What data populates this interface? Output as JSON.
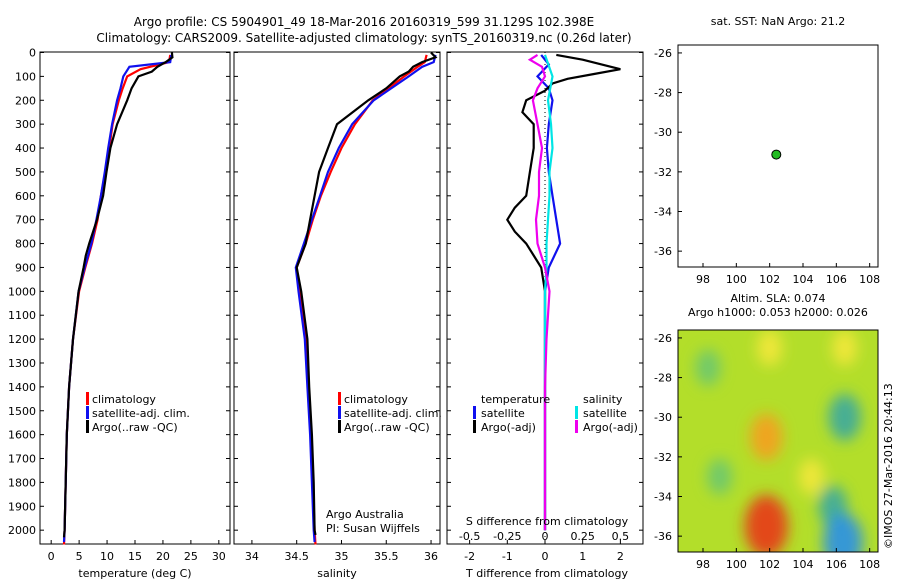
{
  "header": {
    "title1": "Argo profile: CS 5904901_49 18-Mar-2016 20160319_599 31.129S 102.398E",
    "title2": "Climatology: CARS2009. Satellite-adjusted climatology: synTS_20160319.nc (0.26d later)"
  },
  "colors": {
    "climatology": "#ff0000",
    "satellite": "#1010ee",
    "argo": "#000000",
    "sal_satellite": "#00e5e5",
    "sal_argo": "#ee00ee",
    "dot": "#22bb22"
  },
  "depth_ticks": [
    "0",
    "100",
    "200",
    "300",
    "400",
    "500",
    "600",
    "700",
    "800",
    "900",
    "1000",
    "1100",
    "1200",
    "1300",
    "1400",
    "1500",
    "1600",
    "1700",
    "1800",
    "1900",
    "2000"
  ],
  "legend": {
    "climatology": "climatology",
    "satellite_adj": "satellite-adj. clim.",
    "argo_raw": "Argo(..raw -QC)"
  },
  "diff_legend": {
    "temperature": "temperature",
    "salinity": "salinity",
    "satellite": "satellite",
    "argo_adj": "Argo(-adj)"
  },
  "credit": {
    "line1": "Argo Australia",
    "line2": "PI: Susan Wijffels"
  },
  "watermark": "©IMOS 27-Mar-2016 20:44:13",
  "chart_data": [
    {
      "type": "line",
      "xlabel": "temperature (deg C)",
      "xlim": [
        -2,
        32
      ],
      "ylim": [
        0,
        2060
      ],
      "xticks": [
        "0",
        "5",
        "10",
        "15",
        "20",
        "25",
        "30"
      ],
      "series": [
        {
          "name": "climatology",
          "depth": [
            10,
            40,
            70,
            100,
            150,
            200,
            300,
            400,
            500,
            600,
            700,
            800,
            900,
            1000,
            1200,
            1400,
            1600,
            1800,
            2000,
            2060
          ],
          "values": [
            21.3,
            21.1,
            16,
            13.6,
            12.8,
            12.1,
            11,
            10.4,
            9.7,
            8.9,
            8.3,
            7.3,
            6.1,
            5.0,
            3.9,
            3.2,
            2.8,
            2.6,
            2.4,
            2.3
          ]
        },
        {
          "name": "satellite-adj. clim.",
          "depth": [
            10,
            40,
            60,
            100,
            150,
            200,
            300,
            400,
            500,
            600,
            700,
            800,
            900,
            1000,
            1200,
            1400,
            1600,
            1800,
            2000,
            2050
          ],
          "values": [
            21.5,
            21.3,
            14,
            12.9,
            12.4,
            11.8,
            10.9,
            10.2,
            9.6,
            8.9,
            8.1,
            7.2,
            6.0,
            4.9,
            3.9,
            3.2,
            2.8,
            2.6,
            2.4,
            2.3
          ]
        },
        {
          "name": "Argo(..raw -QC)",
          "depth": [
            0,
            20,
            40,
            60,
            80,
            100,
            150,
            200,
            300,
            400,
            500,
            600,
            700,
            800,
            850,
            900,
            1000,
            1200,
            1400,
            1600,
            1800,
            2000,
            2030
          ],
          "values": [
            21.6,
            21.7,
            20.5,
            19,
            18,
            15.6,
            14.4,
            13.6,
            11.8,
            10.6,
            9.9,
            9.3,
            8.2,
            6.8,
            6.2,
            5.8,
            4.9,
            3.9,
            3.2,
            2.8,
            2.6,
            2.4,
            2.3
          ]
        }
      ]
    },
    {
      "type": "line",
      "xlabel": "salinity",
      "xlim": [
        33.8,
        36.1
      ],
      "ylim": [
        0,
        2060
      ],
      "xticks": [
        "34",
        "34.5",
        "35",
        "35.5",
        "36"
      ],
      "series": [
        {
          "name": "climatology",
          "depth": [
            10,
            40,
            60,
            100,
            200,
            300,
            400,
            500,
            600,
            700,
            800,
            900,
            1000,
            1200,
            1400,
            1600,
            1800,
            2000,
            2060
          ],
          "values": [
            35.95,
            35.93,
            35.85,
            35.7,
            35.35,
            35.15,
            35.0,
            34.88,
            34.77,
            34.68,
            34.6,
            34.5,
            34.53,
            34.6,
            34.63,
            34.66,
            34.68,
            34.7,
            34.71
          ]
        },
        {
          "name": "satellite-adj. clim.",
          "depth": [
            10,
            40,
            60,
            100,
            200,
            300,
            400,
            500,
            600,
            700,
            800,
            900,
            1000,
            1200,
            1400,
            1600,
            1800,
            2000,
            2050
          ],
          "values": [
            36.05,
            36.03,
            35.9,
            35.75,
            35.36,
            35.12,
            34.97,
            34.85,
            34.76,
            34.67,
            34.58,
            34.49,
            34.52,
            34.59,
            34.62,
            34.65,
            34.67,
            34.69,
            34.7
          ]
        },
        {
          "name": "Argo(..raw -QC)",
          "depth": [
            0,
            20,
            40,
            60,
            80,
            100,
            150,
            200,
            300,
            400,
            500,
            600,
            700,
            800,
            850,
            900,
            1000,
            1200,
            1400,
            1600,
            1800,
            2000,
            2020
          ],
          "values": [
            36.0,
            36.05,
            35.9,
            35.8,
            35.75,
            35.65,
            35.5,
            35.3,
            34.95,
            34.85,
            34.75,
            34.7,
            34.65,
            34.6,
            34.55,
            34.5,
            34.55,
            34.62,
            34.64,
            34.67,
            34.69,
            34.7,
            34.71
          ]
        }
      ]
    },
    {
      "type": "line",
      "xlabel": "T difference from climatology",
      "x2label": "S difference from climatology",
      "xlim": [
        -2.6,
        2.6
      ],
      "ylim": [
        0,
        2060
      ],
      "xticks": [
        "-2",
        "-1",
        "0",
        "1",
        "2"
      ],
      "x2ticks": [
        "-0.5",
        "-0.25",
        "0",
        "0.25",
        "0.5"
      ],
      "series": [
        {
          "name": "temperature satellite",
          "depth": [
            10,
            50,
            100,
            150,
            200,
            300,
            400,
            500,
            600,
            700,
            800,
            900,
            1000,
            1200,
            1400,
            1600,
            1800,
            2000
          ],
          "values": [
            -0.1,
            0.1,
            -0.2,
            0.1,
            0.2,
            0.1,
            0.05,
            0.1,
            0.2,
            0.3,
            0.4,
            0.1,
            0.0,
            0.0,
            0.0,
            0.0,
            0.0,
            0.0
          ]
        },
        {
          "name": "temperature Argo(-adj)",
          "depth": [
            10,
            30,
            50,
            70,
            90,
            110,
            130,
            160,
            200,
            250,
            300,
            400,
            500,
            600,
            650,
            700,
            750,
            800,
            850,
            900,
            950,
            1000,
            1100,
            1200,
            1400,
            1600,
            1800,
            2000
          ],
          "values": [
            0.3,
            1.0,
            1.5,
            2.0,
            1.3,
            0.6,
            0.2,
            0.0,
            -0.5,
            -0.6,
            -0.3,
            -0.3,
            -0.4,
            -0.5,
            -0.8,
            -1.0,
            -0.8,
            -0.5,
            -0.3,
            -0.1,
            -0.05,
            0.0,
            0.0,
            0.0,
            0.0,
            0.0,
            0.0,
            0.0
          ]
        },
        {
          "name": "salinity satellite",
          "depth": [
            10,
            100,
            200,
            300,
            400,
            500,
            600,
            700,
            800,
            900,
            1000,
            1200,
            1400,
            1600,
            1800,
            2000
          ],
          "values": [
            0.0,
            0.05,
            0.02,
            0.04,
            0.05,
            0.03,
            0.03,
            0.02,
            0.01,
            0.01,
            0.0,
            0.0,
            0.0,
            0.0,
            0.0,
            0.0
          ]
        },
        {
          "name": "salinity Argo(-adj)",
          "depth": [
            10,
            30,
            60,
            100,
            150,
            200,
            300,
            400,
            500,
            600,
            700,
            800,
            900,
            1000,
            1100,
            1200,
            1400,
            1600,
            1800,
            2000
          ],
          "values": [
            -0.05,
            -0.1,
            -0.02,
            0.0,
            -0.05,
            -0.08,
            -0.05,
            -0.02,
            -0.04,
            -0.04,
            -0.06,
            -0.05,
            0.0,
            0.03,
            0.02,
            0.01,
            0.0,
            0.0,
            0.0,
            0.0
          ]
        }
      ]
    },
    {
      "type": "scatter",
      "title": "sat. SST: NaN Argo: 21.2",
      "xlim": [
        96.5,
        108.5
      ],
      "ylim": [
        -36.8,
        -25.6
      ],
      "xticks": [
        "98",
        "100",
        "102",
        "104",
        "106",
        "108"
      ],
      "yticks": [
        "-26",
        "-28",
        "-30",
        "-32",
        "-34",
        "-36"
      ],
      "points": [
        {
          "x": 102.398,
          "y": -31.129
        }
      ]
    },
    {
      "type": "heatmap",
      "title1": "Altim. SLA: 0.074",
      "title2": "Argo h1000: 0.053 h2000: 0.026",
      "xlim": [
        96.5,
        108.5
      ],
      "ylim": [
        -36.8,
        -25.6
      ],
      "xticks": [
        "98",
        "100",
        "102",
        "104",
        "106",
        "108"
      ],
      "yticks": [
        "-26",
        "-28",
        "-30",
        "-32",
        "-34",
        "-36"
      ],
      "anomalies": [
        {
          "x": 101.8,
          "y": -35.5,
          "value": 0.35
        },
        {
          "x": 101.8,
          "y": -31.0,
          "value": 0.2
        },
        {
          "x": 102.0,
          "y": -26.5,
          "value": 0.1
        },
        {
          "x": 104.5,
          "y": -33.0,
          "value": 0.1
        },
        {
          "x": 106.5,
          "y": -26.5,
          "value": 0.1
        },
        {
          "x": 98.3,
          "y": -27.5,
          "value": -0.1
        },
        {
          "x": 99.0,
          "y": -33.0,
          "value": -0.1
        },
        {
          "x": 106.5,
          "y": -30.0,
          "value": -0.2
        },
        {
          "x": 105.8,
          "y": -34.5,
          "value": -0.15
        },
        {
          "x": 106.4,
          "y": -36.3,
          "value": -0.3
        }
      ]
    }
  ]
}
